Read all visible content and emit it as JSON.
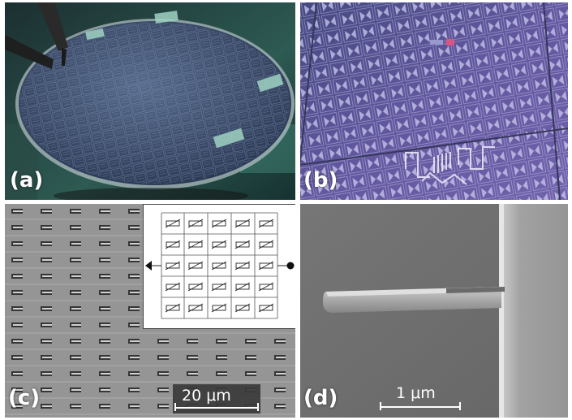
{
  "panels": [
    {
      "label": "(a)",
      "subject": "silicon wafer with patterned chips under a probe"
    },
    {
      "label": "(b)",
      "subject": "optical micrograph of chip with test structures"
    },
    {
      "label": "(c)",
      "subject": "SEM image of cantilever array with resistor network inset",
      "scale_bar": "20 μm"
    },
    {
      "label": "(d)",
      "subject": "SEM image of single nanocantilever",
      "scale_bar": "1 μm"
    }
  ],
  "colors": {
    "wafer_bg": "#1f3d3a",
    "wafer_surface": "#3c4f6a",
    "chip_bg": "#4a4a86",
    "sem_gray": "#9a9a9a",
    "sem_dark": "#6b6b6b"
  }
}
